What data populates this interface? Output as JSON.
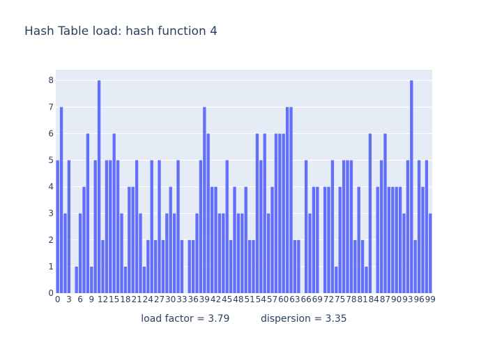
{
  "chart_data": {
    "type": "bar",
    "title": "Hash Table load: hash function 4",
    "xlabel": "load factor = 3.79          dispersion = 3.35",
    "ylabel": "",
    "xlim": [
      -0.5,
      99.5
    ],
    "ylim": [
      0,
      8.4
    ],
    "x_ticks": [
      0,
      3,
      6,
      9,
      12,
      15,
      18,
      21,
      24,
      27,
      30,
      33,
      36,
      39,
      42,
      45,
      48,
      51,
      54,
      57,
      60,
      63,
      66,
      69,
      72,
      75,
      78,
      81,
      84,
      87,
      90,
      93,
      96,
      99
    ],
    "y_ticks": [
      0,
      1,
      2,
      3,
      4,
      5,
      6,
      7,
      8
    ],
    "grid": true,
    "bar_color": "#636efa",
    "plot_bg": "#e5ecf6",
    "values": [
      5,
      7,
      3,
      5,
      0,
      1,
      3,
      4,
      6,
      1,
      5,
      8,
      2,
      5,
      5,
      6,
      5,
      3,
      1,
      4,
      4,
      5,
      3,
      1,
      2,
      5,
      2,
      5,
      2,
      3,
      4,
      3,
      5,
      2,
      0,
      2,
      2,
      3,
      5,
      7,
      6,
      4,
      4,
      3,
      3,
      5,
      2,
      4,
      3,
      3,
      4,
      2,
      2,
      6,
      5,
      6,
      3,
      4,
      6,
      6,
      6,
      7,
      7,
      2,
      2,
      0,
      5,
      3,
      4,
      4,
      0,
      4,
      4,
      5,
      1,
      4,
      5,
      5,
      5,
      2,
      4,
      2,
      1,
      6,
      0,
      4,
      5,
      6,
      4,
      4,
      4,
      4,
      3,
      5,
      8,
      2,
      5,
      4,
      5,
      3
    ]
  }
}
